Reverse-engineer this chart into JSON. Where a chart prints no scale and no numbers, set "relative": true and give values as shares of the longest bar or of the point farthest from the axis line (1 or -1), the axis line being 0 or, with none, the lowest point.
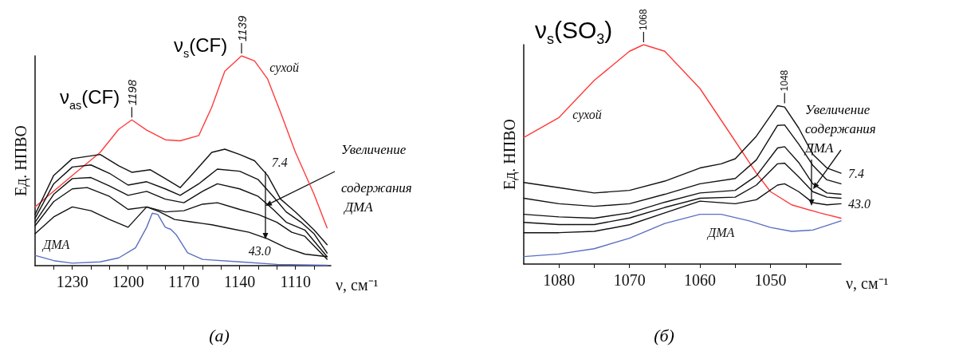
{
  "chart_data": [
    {
      "type": "line",
      "relative": true,
      "xlabel": "ν, см⁻¹",
      "ylabel": "Ед. НПВО",
      "xlim": [
        1250,
        1091
      ],
      "xticks": [
        {
          "value": 1240,
          "label": null
        },
        1230,
        {
          "value": 1220,
          "label": null
        },
        {
          "value": 1210,
          "label": null
        },
        1200,
        {
          "value": 1190,
          "label": null
        },
        {
          "value": 1180,
          "label": null
        },
        1170,
        {
          "value": 1160,
          "label": null
        },
        {
          "value": 1150,
          "label": null
        },
        1140,
        {
          "value": 1130,
          "label": null
        },
        {
          "value": 1120,
          "label": null
        },
        1110,
        {
          "value": 1100,
          "label": null
        }
      ],
      "series": [
        {
          "name": "сухой",
          "color": "#ff3b3b",
          "x": [
            1250,
            1230,
            1215,
            1205,
            1198,
            1190,
            1180,
            1172,
            1162,
            1155,
            1148,
            1139,
            1132,
            1125,
            1118,
            1110,
            1100,
            1093
          ],
          "values": [
            0.28,
            0.43,
            0.54,
            0.65,
            0.695,
            0.646,
            0.6,
            0.595,
            0.62,
            0.756,
            0.927,
            1,
            0.976,
            0.89,
            0.73,
            0.54,
            0.34,
            0.18
          ]
        },
        {
          "name": "7.4",
          "color": "#111111",
          "x": [
            1250,
            1240,
            1230,
            1215,
            1205,
            1198,
            1188,
            1180,
            1172,
            1165,
            1155,
            1148,
            1140,
            1132,
            1125,
            1118,
            1110,
            1100,
            1093
          ],
          "values": [
            0.244,
            0.43,
            0.51,
            0.53,
            0.476,
            0.445,
            0.457,
            0.415,
            0.372,
            0.44,
            0.54,
            0.555,
            0.53,
            0.5,
            0.43,
            0.317,
            0.256,
            0.17,
            0.1
          ]
        },
        {
          "color": "#111111",
          "x": [
            1250,
            1240,
            1230,
            1220,
            1210,
            1200,
            1190,
            1180,
            1172,
            1162,
            1152,
            1140,
            1130,
            1122,
            1115,
            1107,
            1100,
            1093
          ],
          "values": [
            0.226,
            0.39,
            0.47,
            0.48,
            0.44,
            0.384,
            0.4,
            0.366,
            0.335,
            0.39,
            0.46,
            0.45,
            0.41,
            0.33,
            0.256,
            0.207,
            0.152,
            0.06
          ]
        },
        {
          "color": "#111111",
          "x": [
            1250,
            1240,
            1230,
            1220,
            1210,
            1200,
            1190,
            1180,
            1170,
            1160,
            1152,
            1140,
            1130,
            1122,
            1115,
            1105,
            1093
          ],
          "values": [
            0.207,
            0.34,
            0.415,
            0.42,
            0.38,
            0.335,
            0.354,
            0.317,
            0.3,
            0.354,
            0.39,
            0.366,
            0.33,
            0.268,
            0.207,
            0.17,
            0.043
          ]
        },
        {
          "color": "#111111",
          "x": [
            1250,
            1240,
            1230,
            1222,
            1210,
            1200,
            1190,
            1180,
            1170,
            1160,
            1152,
            1140,
            1130,
            1120,
            1112,
            1105,
            1093
          ],
          "values": [
            0.19,
            0.305,
            0.366,
            0.372,
            0.33,
            0.268,
            0.28,
            0.256,
            0.262,
            0.293,
            0.3,
            0.268,
            0.244,
            0.207,
            0.159,
            0.14,
            0.03
          ]
        },
        {
          "name": "43.0",
          "color": "#111111",
          "x": [
            1250,
            1240,
            1230,
            1220,
            1210,
            1200,
            1190,
            1183,
            1175,
            1165,
            1155,
            1145,
            1135,
            1125,
            1115,
            1105,
            1093
          ],
          "values": [
            0.152,
            0.232,
            0.28,
            0.262,
            0.22,
            0.183,
            0.28,
            0.256,
            0.22,
            0.207,
            0.195,
            0.177,
            0.159,
            0.128,
            0.085,
            0.055,
            0.043
          ]
        },
        {
          "name": "ДМА",
          "color": "#5b6fc4",
          "x": [
            1250,
            1240,
            1230,
            1215,
            1205,
            1196,
            1190,
            1187,
            1184,
            1180,
            1177,
            1174,
            1168,
            1160,
            1140,
            1120,
            1093
          ],
          "values": [
            0.049,
            0.024,
            0.012,
            0.018,
            0.037,
            0.085,
            0.183,
            0.25,
            0.244,
            0.183,
            0.173,
            0.146,
            0.061,
            0.03,
            0.018,
            0.006,
            0.002
          ]
        }
      ],
      "annotations": [
        "ν$_{as}$(CF)",
        {
          "text": "1198",
          "x": 1198,
          "y": 0.695
        },
        "ν$_{s}$(CF)",
        {
          "text": "1139",
          "x": 1139,
          "y": 1
        },
        "Увеличение содержания ДМА",
        "(а)"
      ]
    },
    {
      "type": "line",
      "relative": true,
      "xlabel": "ν, см⁻¹",
      "ylabel": "Ед. НПВО",
      "xlim": [
        1085,
        1040
      ],
      "xticks": [
        1080,
        {
          "value": 1075,
          "label": null
        },
        1070,
        {
          "value": 1065,
          "label": null
        },
        1060,
        {
          "value": 1055,
          "label": null
        },
        1050,
        {
          "value": 1045,
          "label": null
        }
      ],
      "series": [
        {
          "name": "сухой",
          "color": "#ff3b3b",
          "x": [
            1085,
            1080,
            1075,
            1070,
            1068,
            1065,
            1060,
            1055,
            1052,
            1050,
            1047,
            1043,
            1040
          ],
          "values": [
            0.577,
            0.668,
            0.837,
            0.97,
            1,
            0.97,
            0.8,
            0.56,
            0.414,
            0.33,
            0.27,
            0.233,
            0.209
          ]
        },
        {
          "name": "7.4",
          "color": "#111111",
          "x": [
            1085,
            1080,
            1075,
            1070,
            1065,
            1060,
            1057,
            1055,
            1052,
            1049,
            1048,
            1046,
            1044,
            1042,
            1040
          ],
          "values": [
            0.372,
            0.348,
            0.324,
            0.336,
            0.378,
            0.438,
            0.457,
            0.48,
            0.583,
            0.722,
            0.716,
            0.62,
            0.5,
            0.438,
            0.414
          ]
        },
        {
          "color": "#111111",
          "x": [
            1085,
            1080,
            1075,
            1070,
            1065,
            1060,
            1055,
            1052,
            1049,
            1048,
            1046,
            1044,
            1042,
            1040
          ],
          "values": [
            0.3,
            0.275,
            0.263,
            0.275,
            0.318,
            0.366,
            0.39,
            0.475,
            0.632,
            0.634,
            0.547,
            0.45,
            0.384,
            0.366
          ]
        },
        {
          "color": "#111111",
          "x": [
            1085,
            1080,
            1075,
            1070,
            1065,
            1060,
            1055,
            1052,
            1049,
            1048,
            1046,
            1044,
            1042,
            1040
          ],
          "values": [
            0.227,
            0.215,
            0.209,
            0.233,
            0.282,
            0.324,
            0.336,
            0.402,
            0.529,
            0.535,
            0.463,
            0.366,
            0.324,
            0.318
          ]
        },
        {
          "color": "#111111",
          "x": [
            1085,
            1080,
            1075,
            1070,
            1065,
            1060,
            1055,
            1052,
            1049,
            1048,
            1046,
            1044,
            1042,
            1040
          ],
          "values": [
            0.19,
            0.18,
            0.18,
            0.21,
            0.258,
            0.3,
            0.305,
            0.36,
            0.457,
            0.46,
            0.397,
            0.33,
            0.305,
            0.3
          ]
        },
        {
          "name": "43.0",
          "color": "#111111",
          "x": [
            1085,
            1080,
            1075,
            1070,
            1065,
            1060,
            1055,
            1052,
            1049,
            1048,
            1046,
            1044,
            1042,
            1040
          ],
          "values": [
            0.143,
            0.143,
            0.149,
            0.179,
            0.233,
            0.287,
            0.275,
            0.293,
            0.36,
            0.366,
            0.33,
            0.28,
            0.27,
            0.275
          ]
        },
        {
          "name": "ДМА",
          "color": "#5b6fc4",
          "x": [
            1085,
            1080,
            1075,
            1070,
            1065,
            1060,
            1057,
            1053,
            1050,
            1047,
            1044,
            1040
          ],
          "values": [
            0.034,
            0.046,
            0.07,
            0.118,
            0.185,
            0.227,
            0.227,
            0.197,
            0.167,
            0.149,
            0.155,
            0.197
          ]
        }
      ],
      "annotations": [
        "ν$_{s}$(SO$_{3}$)",
        {
          "text": "1068",
          "x": 1068,
          "y": 1
        },
        {
          "text": "1048",
          "x": 1048,
          "y": 0.722
        },
        "Увеличение содержания ДМА",
        "(б)"
      ]
    }
  ]
}
